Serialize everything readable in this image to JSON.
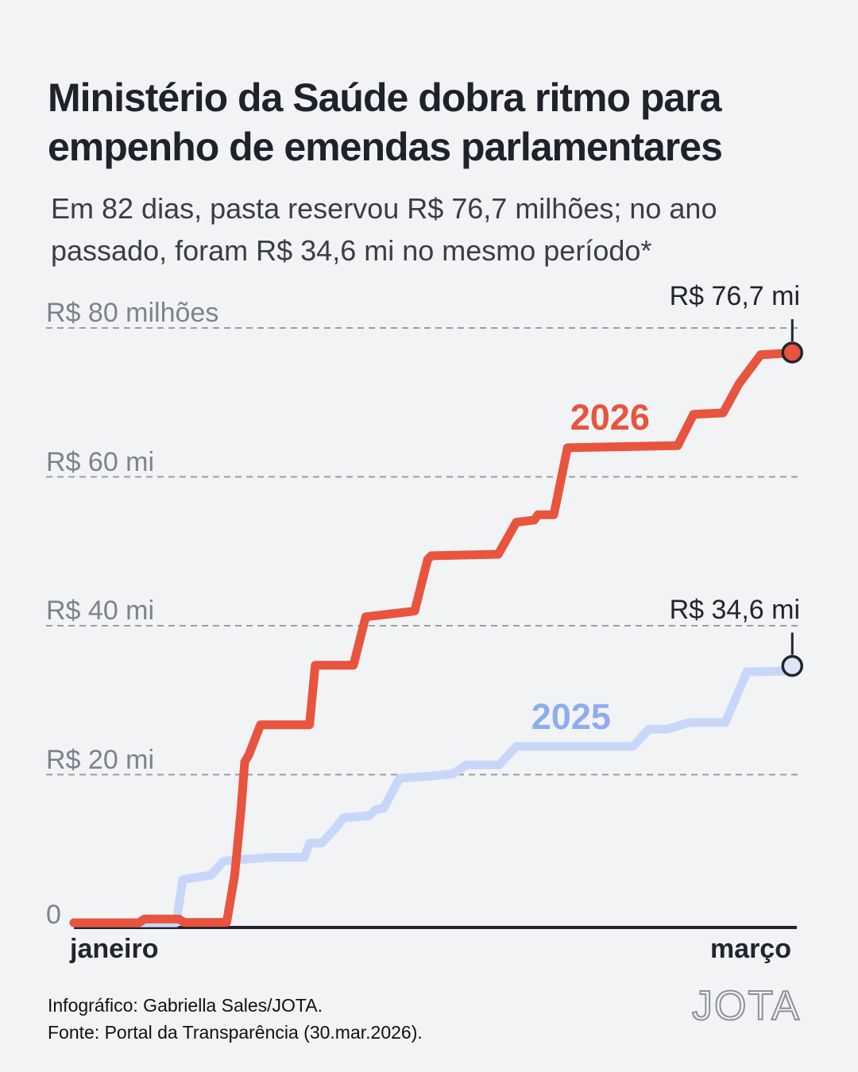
{
  "header": {
    "title_lines": [
      "Ministério da Saúde dobra ritmo para",
      "empenho de emendas parlamentares"
    ],
    "subtitle_lines": [
      "Em 82 dias, pasta reservou R$ 76,7 milhões; no ano",
      "passado, foram R$ 34,6 mi no mesmo período*"
    ]
  },
  "chart_data": {
    "type": "line",
    "subtype": "cumulative-step",
    "grid": "horizontal-dashed",
    "grid_color": "#9B9EA7",
    "axis_color": "#23252E",
    "ylim": [
      0,
      80
    ],
    "y_ticks": [
      {
        "value": 80,
        "label": "R$ 80 milhões"
      },
      {
        "value": 60,
        "label": "R$ 60 mi"
      },
      {
        "value": 40,
        "label": "R$ 40 mi"
      },
      {
        "value": 20,
        "label": "R$ 20 mi"
      },
      {
        "value": 0,
        "label": "0"
      }
    ],
    "x_axis": {
      "left_label": "janeiro",
      "right_label": "março"
    },
    "series": [
      {
        "name": "2026",
        "color": "#E8543E",
        "label_color": "#E8543E",
        "dot_fill": "#E8543E",
        "end_label": "R$ 76,7 mi",
        "end_value": 76.7,
        "label_anchor": {
          "x_pct": 74.4,
          "value": 68.0
        },
        "points": [
          [
            0,
            0.1
          ],
          [
            9.0,
            0.1
          ],
          [
            9.8,
            0.6
          ],
          [
            14.6,
            0.6
          ],
          [
            15.3,
            0.15
          ],
          [
            21.2,
            0.15
          ],
          [
            22.3,
            6.4
          ],
          [
            23.2,
            15.3
          ],
          [
            23.7,
            21.7
          ],
          [
            24.3,
            22.7
          ],
          [
            25.9,
            26.7
          ],
          [
            32.7,
            26.7
          ],
          [
            33.5,
            34.7
          ],
          [
            38.8,
            34.7
          ],
          [
            40.5,
            41.2
          ],
          [
            46.7,
            41.9
          ],
          [
            47.3,
            42.0
          ],
          [
            49.1,
            48.9
          ],
          [
            49.6,
            49.4
          ],
          [
            58.9,
            49.6
          ],
          [
            61.4,
            53.9
          ],
          [
            63.9,
            54.2
          ],
          [
            64.4,
            54.9
          ],
          [
            66.6,
            54.9
          ],
          [
            68.5,
            63.9
          ],
          [
            83.8,
            64.2
          ],
          [
            86.0,
            68.4
          ],
          [
            90.1,
            68.6
          ],
          [
            92.3,
            72.5
          ],
          [
            95.3,
            76.4
          ],
          [
            98.9,
            76.6
          ],
          [
            99.7,
            76.7
          ]
        ]
      },
      {
        "name": "2025",
        "color": "#C8D7F9",
        "label_color": "#8FACEF",
        "dot_fill": "#DCE6FA",
        "end_label": "R$ 34,6 mi",
        "end_value": 34.6,
        "label_anchor": {
          "x_pct": 69.0,
          "value": 27.7
        },
        "points": [
          [
            0,
            0.1
          ],
          [
            14.2,
            0.1
          ],
          [
            15.1,
            5.9
          ],
          [
            19.0,
            6.5
          ],
          [
            20.8,
            8.4
          ],
          [
            27.2,
            8.9
          ],
          [
            32.0,
            8.9
          ],
          [
            32.7,
            10.8
          ],
          [
            34.4,
            10.8
          ],
          [
            36.4,
            12.9
          ],
          [
            37.4,
            14.2
          ],
          [
            41.0,
            14.5
          ],
          [
            41.9,
            15.3
          ],
          [
            43.0,
            15.5
          ],
          [
            45.2,
            19.5
          ],
          [
            49.3,
            19.8
          ],
          [
            52.6,
            20.1
          ],
          [
            54.5,
            21.3
          ],
          [
            59.0,
            21.3
          ],
          [
            61.4,
            23.8
          ],
          [
            77.6,
            23.8
          ],
          [
            79.8,
            26.1
          ],
          [
            82.4,
            26.1
          ],
          [
            85.4,
            27.0
          ],
          [
            90.4,
            27.0
          ],
          [
            93.4,
            33.8
          ],
          [
            98.6,
            33.9
          ],
          [
            99.7,
            34.6
          ]
        ]
      }
    ]
  },
  "footer": {
    "credit": "Infográfico: Gabriella Sales/JOTA.",
    "source": "Fonte: Portal da Transparência (30.mar.2026).",
    "logo": "JOTA"
  }
}
